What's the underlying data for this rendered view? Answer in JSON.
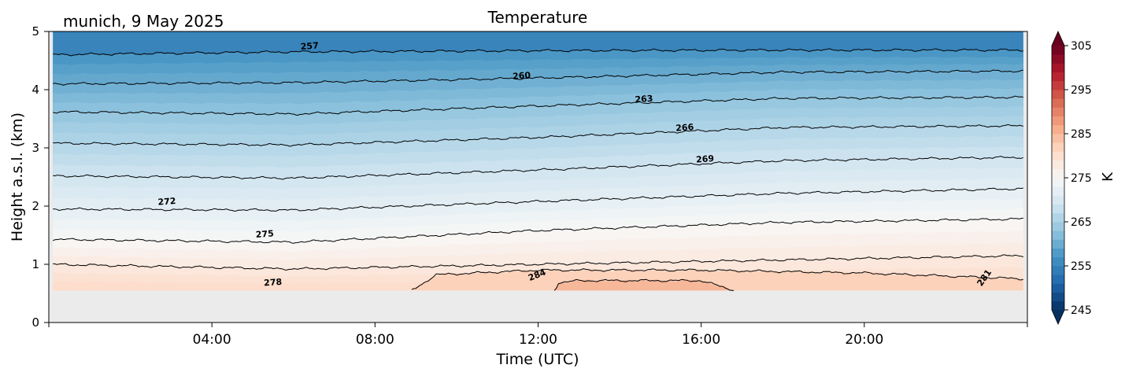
{
  "chart_data": {
    "type": "contour",
    "title": "Temperature",
    "subtitle": "munich, 9 May 2025",
    "xlabel": "Time (UTC)",
    "ylabel": "Height a.s.l. (km)",
    "xlim": [
      0,
      24
    ],
    "ylim": [
      0,
      5
    ],
    "x_ticks": [
      {
        "value": 4,
        "label": "04:00"
      },
      {
        "value": 8,
        "label": "08:00"
      },
      {
        "value": 12,
        "label": "12:00"
      },
      {
        "value": 16,
        "label": "16:00"
      },
      {
        "value": 20,
        "label": "20:00"
      }
    ],
    "y_ticks": [
      {
        "value": 0,
        "label": "0"
      },
      {
        "value": 1,
        "label": "1"
      },
      {
        "value": 2,
        "label": "2"
      },
      {
        "value": 3,
        "label": "3"
      },
      {
        "value": 4,
        "label": "4"
      },
      {
        "value": 5,
        "label": "5"
      }
    ],
    "data_start_hour": 0.1,
    "data_end_hour": 23.9,
    "data_min_height_km": 0.55,
    "colorbar": {
      "label": "K",
      "vmin": 245,
      "vmax": 305,
      "step": 2,
      "extend": "both",
      "ticks": [
        {
          "value": 245,
          "label": "245"
        },
        {
          "value": 255,
          "label": "255"
        },
        {
          "value": 265,
          "label": "265"
        },
        {
          "value": 275,
          "label": "275"
        },
        {
          "value": 285,
          "label": "285"
        },
        {
          "value": 295,
          "label": "295"
        },
        {
          "value": 305,
          "label": "305"
        }
      ],
      "colormap": "RdBu_r"
    },
    "contour_lines": [
      {
        "level": 257,
        "height_km": [
          [
            0,
            4.6
          ],
          [
            6,
            4.65
          ],
          [
            12,
            4.67
          ],
          [
            18,
            4.68
          ],
          [
            24,
            4.68
          ]
        ],
        "label": "257",
        "label_x": 6.4,
        "label_y": 4.7
      },
      {
        "level": 260,
        "height_km": [
          [
            0,
            4.1
          ],
          [
            6,
            4.12
          ],
          [
            12,
            4.2
          ],
          [
            18,
            4.3
          ],
          [
            24,
            4.32
          ]
        ],
        "label": "260",
        "label_x": 11.6,
        "label_y": 4.19
      },
      {
        "level": 263,
        "height_km": [
          [
            0,
            3.62
          ],
          [
            6,
            3.58
          ],
          [
            12,
            3.72
          ],
          [
            18,
            3.85
          ],
          [
            24,
            3.87
          ]
        ],
        "label": "263",
        "label_x": 14.6,
        "label_y": 3.79
      },
      {
        "level": 266,
        "height_km": [
          [
            0,
            3.08
          ],
          [
            6,
            3.05
          ],
          [
            12,
            3.18
          ],
          [
            18,
            3.35
          ],
          [
            24,
            3.38
          ]
        ],
        "label": "266",
        "label_x": 15.6,
        "label_y": 3.3
      },
      {
        "level": 269,
        "height_km": [
          [
            0,
            2.52
          ],
          [
            6,
            2.48
          ],
          [
            12,
            2.62
          ],
          [
            18,
            2.78
          ],
          [
            24,
            2.84
          ]
        ],
        "label": "269",
        "label_x": 16.1,
        "label_y": 2.76
      },
      {
        "level": 272,
        "height_km": [
          [
            0,
            1.95
          ],
          [
            6,
            1.93
          ],
          [
            12,
            2.08
          ],
          [
            18,
            2.22
          ],
          [
            24,
            2.3
          ]
        ],
        "label": "272",
        "label_x": 2.9,
        "label_y": 2.03
      },
      {
        "level": 275,
        "height_km": [
          [
            0,
            1.43
          ],
          [
            6,
            1.38
          ],
          [
            12,
            1.58
          ],
          [
            18,
            1.72
          ],
          [
            24,
            1.78
          ]
        ],
        "label": "275",
        "label_x": 5.3,
        "label_y": 1.47
      },
      {
        "level": 278,
        "height_km": [
          [
            0,
            1.0
          ],
          [
            6,
            0.92
          ],
          [
            12,
            1.0
          ],
          [
            16,
            1.05
          ],
          [
            24,
            1.15
          ]
        ],
        "label": "278",
        "label_x": 5.5,
        "label_y": 0.64
      },
      {
        "level": 281,
        "height_km": [
          [
            8.9,
            0.55
          ],
          [
            9.5,
            0.82
          ],
          [
            12,
            0.9
          ],
          [
            16,
            0.9
          ],
          [
            20,
            0.85
          ],
          [
            23.9,
            0.75
          ]
        ],
        "label": "281",
        "label_x": 23.0,
        "label_y": 0.74
      },
      {
        "level": 284,
        "height_km": [
          [
            12.4,
            0.55
          ],
          [
            12.5,
            0.68
          ],
          [
            13,
            0.72
          ],
          [
            16,
            0.72
          ],
          [
            16.8,
            0.55
          ]
        ],
        "label": "284",
        "label_x": 12.0,
        "label_y": 0.77
      }
    ]
  }
}
